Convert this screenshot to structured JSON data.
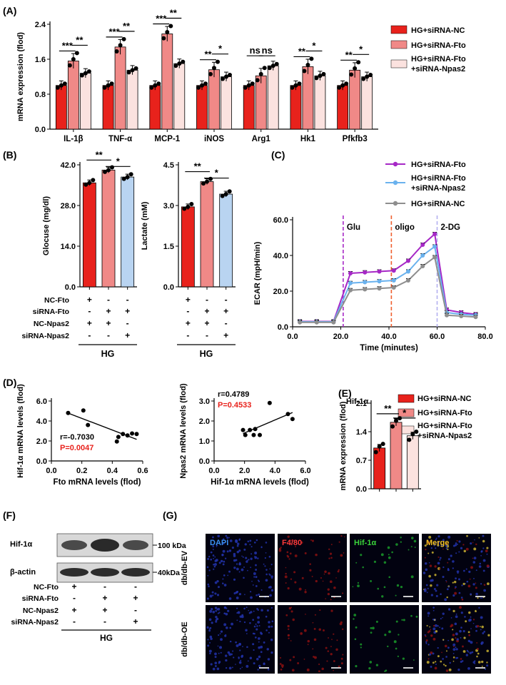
{
  "panel_labels": {
    "a": "(A)",
    "b": "(B)",
    "c": "(C)",
    "d": "(D)",
    "e": "(E)",
    "f": "(F)",
    "g": "(G)"
  },
  "colors": {
    "nc": "#e8221c",
    "fto": "#f08987",
    "npas2": "#fbe2df",
    "blue": "#b9d4f1",
    "purple": "#a628c6",
    "lightblue": "#6ab2ee",
    "gray": "#8e8e8e",
    "red_text": "#e8221c"
  },
  "legend_a": {
    "nc": "HG+siRNA-NC",
    "fto": "HG+siRNA-Fto",
    "npas2_l1": "HG+siRNA-Fto",
    "npas2_l2": "+siRNA-Npas2"
  },
  "legend_c": {
    "fto": "HG+siRNA-Fto",
    "npas2_l1": "HG+siRNA-Fto",
    "npas2_l2": "+siRNA-Npas2",
    "nc": "HG+siRNA-NC"
  },
  "legend_e": {
    "nc": "HG+siRNA-NC",
    "fto": "HG+siRNA-Fto",
    "npas2_l1": "HG+siRNA-Fto",
    "npas2_l2": "+siRNA-Npas2"
  },
  "treat": {
    "rows": [
      "NC-Fto",
      "siRNA-Fto",
      "NC-Npas2",
      "siRNA-Npas2"
    ],
    "signs": [
      [
        "+",
        "-",
        "-"
      ],
      [
        "-",
        "+",
        "+"
      ],
      [
        "+",
        "+",
        "-"
      ],
      [
        "-",
        "-",
        "+"
      ]
    ],
    "group": "HG"
  },
  "western": {
    "band1": "Hif-1α",
    "band2": "β-actin",
    "mw1": "100 kDa",
    "mw2": "40kDa"
  },
  "if_images": {
    "channels": [
      "DAPI",
      "F4/80",
      "Hif-1α",
      "Merge"
    ],
    "channel_colors": [
      "#3a8ff0",
      "#ff3a3a",
      "#3ad43a",
      "#f0c020"
    ],
    "rows": [
      "db/db-EV",
      "db/db-OE"
    ]
  },
  "chart_data": [
    {
      "id": "A",
      "type": "bar",
      "ylabel": "mRNA expression (flod)",
      "ylim": [
        0,
        2.4
      ],
      "yticks": [
        "0.0",
        "0.8",
        "1.6",
        "2.4"
      ],
      "categories": [
        "IL-1β",
        "TNF-α",
        "MCP-1",
        "iNOS",
        "Arg1",
        "Hk1",
        "Pfkfb3"
      ],
      "series": [
        {
          "name": "HG+siRNA-NC",
          "values": [
            1.0,
            1.0,
            1.0,
            1.0,
            1.0,
            1.0,
            1.0
          ]
        },
        {
          "name": "HG+siRNA-Fto",
          "values": [
            1.56,
            1.88,
            2.18,
            1.36,
            1.22,
            1.43,
            1.35
          ]
        },
        {
          "name": "HG+siRNA-Fto+siRNA-Npas2",
          "values": [
            1.28,
            1.35,
            1.5,
            1.2,
            1.45,
            1.22,
            1.2
          ]
        }
      ],
      "significance": [
        [
          "***",
          "**"
        ],
        [
          "***",
          "**"
        ],
        [
          "***",
          "**"
        ],
        [
          "**",
          "*"
        ],
        [
          "ns",
          "ns"
        ],
        [
          "**",
          "*"
        ],
        [
          "**",
          "*"
        ]
      ]
    },
    {
      "id": "B1",
      "type": "bar",
      "ylabel": "Glocuse (mg/dl)",
      "ylim": [
        0,
        42
      ],
      "yticks": [
        "0.0",
        "14.0",
        "28.0",
        "42.0"
      ],
      "values": [
        35.8,
        40.2,
        37.8
      ],
      "significance": [
        "**",
        "*"
      ]
    },
    {
      "id": "B2",
      "type": "bar",
      "ylabel": "Lactate (mM)",
      "ylim": [
        0,
        4.5
      ],
      "yticks": [
        "0.0",
        "1.5",
        "3.0",
        "4.5"
      ],
      "values": [
        2.95,
        3.88,
        3.42
      ],
      "significance": [
        "**",
        "*"
      ]
    },
    {
      "id": "C",
      "type": "line",
      "xlabel": "Time (minutes)",
      "ylabel": "ECAR (mpH/min)",
      "xlim": [
        0,
        80
      ],
      "ylim": [
        0,
        60
      ],
      "xticks": [
        "0.0",
        "20.0",
        "40.0",
        "60.0",
        "80.0"
      ],
      "yticks": [
        "0.0",
        "20.0",
        "40.0",
        "60.0"
      ],
      "annotations": [
        "Glu",
        "oligo",
        "2-DG"
      ],
      "x": [
        3,
        10,
        17,
        24,
        30,
        36,
        42,
        48,
        54,
        59,
        64,
        70,
        76
      ],
      "series": [
        {
          "name": "HG+siRNA-Fto",
          "values": [
            3,
            3,
            3,
            30,
            30.5,
            31,
            31.5,
            37,
            46,
            52,
            9.5,
            8,
            7
          ]
        },
        {
          "name": "HG+siRNA-Fto+siRNA-Npas2",
          "values": [
            2.8,
            2.8,
            2.8,
            24.5,
            25,
            25.5,
            26,
            31,
            40,
            45,
            8,
            7,
            6.5
          ]
        },
        {
          "name": "HG+siRNA-NC",
          "values": [
            2.5,
            2.5,
            2.5,
            20.5,
            21,
            21.5,
            22,
            26,
            34,
            39,
            6.5,
            6,
            5.5
          ]
        }
      ]
    },
    {
      "id": "D1",
      "type": "scatter",
      "xlabel": "Fto mRNA levels (flod)",
      "ylabel": "Hif-1α mRNA levels (flod)",
      "xlim": [
        0,
        0.6
      ],
      "ylim": [
        0,
        6
      ],
      "xticks": [
        "0.0",
        "0.2",
        "0.4",
        "0.6"
      ],
      "yticks": [
        "0.0",
        "2.0",
        "4.0",
        "6.0"
      ],
      "r": "r=-0.7030",
      "p": "P=0.0047",
      "x": [
        0.11,
        0.21,
        0.24,
        0.43,
        0.44,
        0.47,
        0.5,
        0.53,
        0.56
      ],
      "y": [
        4.8,
        5.05,
        3.6,
        1.95,
        2.4,
        2.7,
        2.55,
        2.75,
        2.7
      ]
    },
    {
      "id": "D2",
      "type": "scatter",
      "xlabel": "Hif-1α mRNA levels (flod)",
      "ylabel": "Npas2 mRNA levels (flod)",
      "xlim": [
        0,
        6
      ],
      "ylim": [
        0,
        3
      ],
      "xticks": [
        "0.0",
        "2.0",
        "4.0",
        "6.0"
      ],
      "yticks": [
        "0.0",
        "1.0",
        "2.0",
        "3.0"
      ],
      "r": "r=0.4789",
      "p": "P=0.4533",
      "x": [
        1.9,
        2.05,
        2.35,
        2.6,
        2.7,
        3.0,
        3.65,
        4.85,
        5.15
      ],
      "y": [
        1.55,
        1.3,
        1.55,
        1.3,
        1.6,
        1.3,
        2.9,
        2.35,
        2.1
      ]
    },
    {
      "id": "E",
      "type": "bar",
      "title": "Hif-1α",
      "ylabel": "mRNA expression (flod)",
      "ylim": [
        0,
        2.1
      ],
      "yticks": [
        "0.0",
        "0.7",
        "1.4",
        "2.1"
      ],
      "values": [
        1.0,
        1.63,
        1.3
      ],
      "significance": [
        "**",
        "*"
      ]
    }
  ]
}
